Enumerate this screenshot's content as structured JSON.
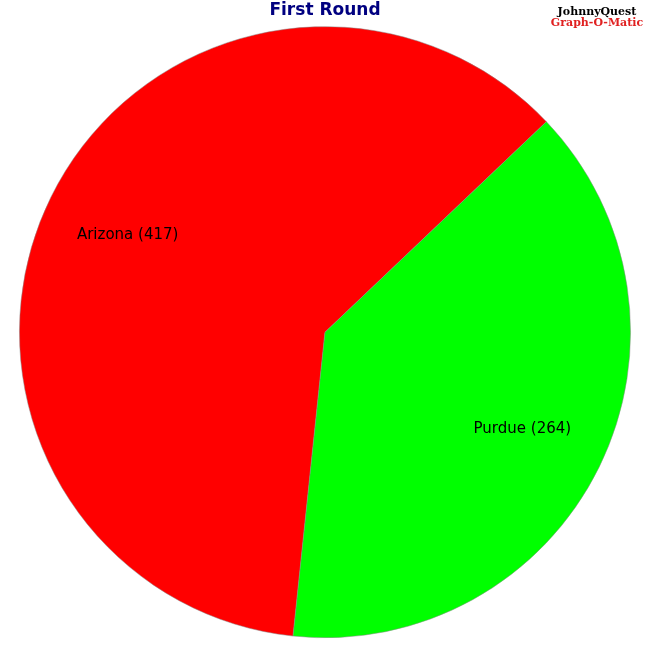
{
  "chart_data": {
    "type": "pie",
    "title": "First Round",
    "categories": [
      "Arizona",
      "Purdue"
    ],
    "values": [
      417,
      264
    ],
    "value_labels": [
      "Arizona (417)",
      "Purdue (264)"
    ],
    "colors": [
      "#ff0000",
      "#00ff00"
    ],
    "data_labels": true,
    "annotations": [
      "JohnnyQuest",
      "Graph-O-Matic"
    ]
  }
}
